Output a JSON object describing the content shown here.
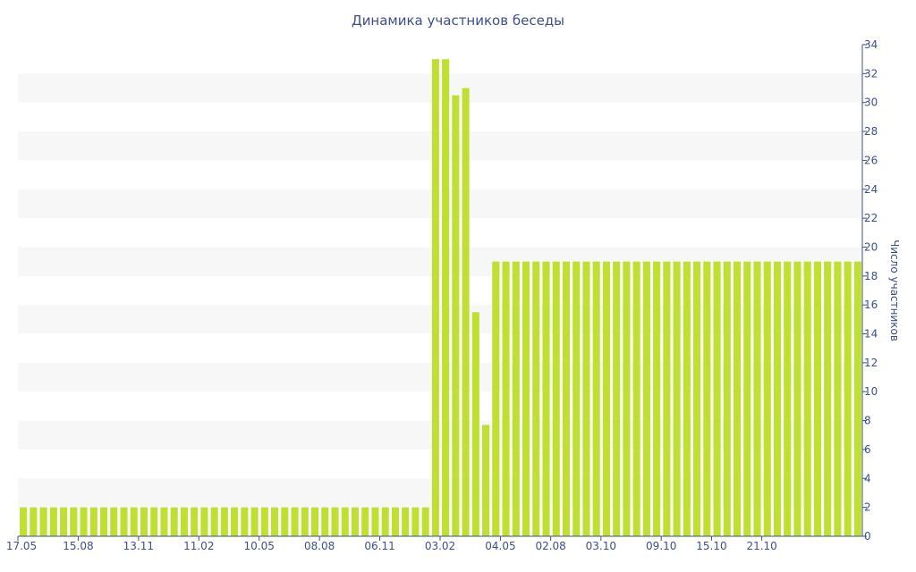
{
  "chart_data": {
    "type": "bar",
    "title": "Динамика участников беседы",
    "xlabel": "",
    "ylabel": "Число участников",
    "ylim": [
      0,
      34
    ],
    "y_ticks": [
      0,
      2,
      4,
      6,
      8,
      10,
      12,
      14,
      16,
      18,
      20,
      22,
      24,
      26,
      28,
      30,
      32,
      34
    ],
    "y_axis_position": "right",
    "grid": "alternating-horizontal-bands",
    "legend": "none",
    "colors": {
      "bar": "#bfe032",
      "text": "#3e4f8a",
      "band": "#f7f7f7"
    },
    "x_tick_labels": [
      "17.05",
      "15.08",
      "13.11",
      "11.02",
      "10.05",
      "08.08",
      "06.11",
      "03.02",
      "04.05",
      "02.08",
      "03.10",
      "09.10",
      "15.10",
      "21.10"
    ],
    "x_tick_at_bar": [
      0,
      6,
      12,
      18,
      24,
      30,
      36,
      42,
      48,
      53,
      58,
      64,
      69,
      74
    ],
    "values": [
      2,
      2,
      2,
      2,
      2,
      2,
      2,
      2,
      2,
      2,
      2,
      2,
      2,
      2,
      2,
      2,
      2,
      2,
      2,
      2,
      2,
      2,
      2,
      2,
      2,
      2,
      2,
      2,
      2,
      2,
      2,
      2,
      2,
      2,
      2,
      2,
      2,
      2,
      2,
      2,
      2,
      33,
      33,
      30.5,
      31,
      15.5,
      7.7,
      19,
      19,
      19,
      19,
      19,
      19,
      19,
      19,
      19,
      19,
      19,
      19,
      19,
      19,
      19,
      19,
      19,
      19,
      19,
      19,
      19,
      19,
      19,
      19,
      19,
      19,
      19,
      19,
      19,
      19,
      19,
      19,
      19,
      19,
      19,
      19,
      19
    ]
  }
}
